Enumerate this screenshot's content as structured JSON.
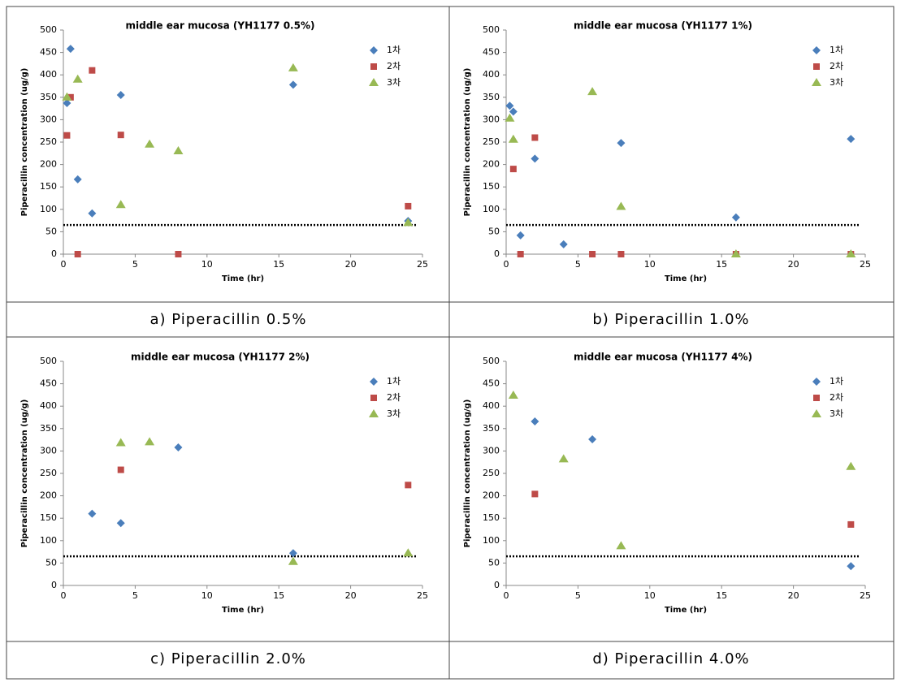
{
  "chart_data": [
    {
      "type": "scatter",
      "title": "middle ear mucosa (YH1177 0.5%)",
      "caption": "a) Piperacillin 0.5%",
      "x_label": "Time (hr)",
      "y_label": "Piperacillin concentration (ug/g)",
      "xlim": [
        0,
        25
      ],
      "xticks": [
        0,
        5,
        10,
        15,
        20,
        25
      ],
      "ylim": [
        0,
        500
      ],
      "yticks": [
        0,
        50,
        100,
        150,
        200,
        250,
        300,
        350,
        400,
        450,
        500
      ],
      "reference_line": 65,
      "legend": "upper right",
      "series": [
        {
          "name": "1차",
          "color": "#4a7ebb",
          "marker": "diamond",
          "x": [
            0.25,
            0.5,
            1,
            2,
            4,
            16,
            24
          ],
          "values": [
            337,
            458,
            167,
            91,
            355,
            378,
            74
          ]
        },
        {
          "name": "2차",
          "color": "#be4b48",
          "marker": "square",
          "x": [
            0.25,
            0.5,
            1,
            2,
            4,
            8,
            24
          ],
          "values": [
            265,
            350,
            0,
            410,
            266,
            0,
            107
          ]
        },
        {
          "name": "3차",
          "color": "#98b954",
          "marker": "triangle",
          "x": [
            0.25,
            1,
            4,
            6,
            8,
            16,
            24
          ],
          "values": [
            350,
            390,
            110,
            245,
            230,
            415,
            70
          ]
        }
      ]
    },
    {
      "type": "scatter",
      "title": "middle ear mucosa (YH1177 1%)",
      "caption": "b) Piperacillin 1.0%",
      "x_label": "Time (hr)",
      "y_label": "Piperacillin concentration (ug/g)",
      "xlim": [
        0,
        25
      ],
      "xticks": [
        0,
        5,
        10,
        15,
        20,
        25
      ],
      "ylim": [
        0,
        500
      ],
      "yticks": [
        0,
        50,
        100,
        150,
        200,
        250,
        300,
        350,
        400,
        450,
        500
      ],
      "reference_line": 65,
      "legend": "upper right",
      "series": [
        {
          "name": "1차",
          "color": "#4a7ebb",
          "marker": "diamond",
          "x": [
            0.25,
            0.5,
            1,
            2,
            4,
            8,
            16,
            24
          ],
          "values": [
            331,
            318,
            42,
            213,
            22,
            248,
            82,
            257
          ]
        },
        {
          "name": "2차",
          "color": "#be4b48",
          "marker": "square",
          "x": [
            0.5,
            1,
            2,
            6,
            8,
            16,
            24
          ],
          "values": [
            190,
            0,
            260,
            0,
            0,
            0,
            0
          ]
        },
        {
          "name": "3차",
          "color": "#98b954",
          "marker": "triangle",
          "x": [
            0.25,
            0.5,
            6,
            8,
            16,
            24
          ],
          "values": [
            303,
            256,
            362,
            106,
            0,
            0
          ]
        }
      ]
    },
    {
      "type": "scatter",
      "title": "middle ear mucosa (YH1177 2%)",
      "caption": "c) Piperacillin 2.0%",
      "x_label": "Time (hr)",
      "y_label": "Piperacillin concentration (ug/g)",
      "xlim": [
        0,
        25
      ],
      "xticks": [
        0,
        5,
        10,
        15,
        20,
        25
      ],
      "ylim": [
        0,
        500
      ],
      "yticks": [
        0,
        50,
        100,
        150,
        200,
        250,
        300,
        350,
        400,
        450,
        500
      ],
      "reference_line": 65,
      "legend": "upper right",
      "series": [
        {
          "name": "1차",
          "color": "#4a7ebb",
          "marker": "diamond",
          "x": [
            2,
            4,
            8,
            16
          ],
          "values": [
            160,
            139,
            308,
            72
          ]
        },
        {
          "name": "2차",
          "color": "#be4b48",
          "marker": "square",
          "x": [
            4,
            24
          ],
          "values": [
            258,
            224
          ]
        },
        {
          "name": "3차",
          "color": "#98b954",
          "marker": "triangle",
          "x": [
            4,
            6,
            16,
            24
          ],
          "values": [
            318,
            320,
            53,
            72
          ]
        }
      ]
    },
    {
      "type": "scatter",
      "title": "middle ear mucosa (YH1177 4%)",
      "caption": "d) Piperacillin 4.0%",
      "x_label": "Time (hr)",
      "y_label": "Piperacillin concentration (ug/g)",
      "xlim": [
        0,
        25
      ],
      "xticks": [
        0,
        5,
        10,
        15,
        20,
        25
      ],
      "ylim": [
        0,
        500
      ],
      "yticks": [
        0,
        50,
        100,
        150,
        200,
        250,
        300,
        350,
        400,
        450,
        500
      ],
      "reference_line": 65,
      "legend": "upper right",
      "series": [
        {
          "name": "1차",
          "color": "#4a7ebb",
          "marker": "diamond",
          "x": [
            2,
            6,
            24
          ],
          "values": [
            366,
            326,
            43
          ]
        },
        {
          "name": "2차",
          "color": "#be4b48",
          "marker": "square",
          "x": [
            2,
            24
          ],
          "values": [
            204,
            136
          ]
        },
        {
          "name": "3차",
          "color": "#98b954",
          "marker": "triangle",
          "x": [
            0.5,
            4,
            8,
            24
          ],
          "values": [
            424,
            282,
            88,
            265
          ]
        }
      ]
    }
  ]
}
